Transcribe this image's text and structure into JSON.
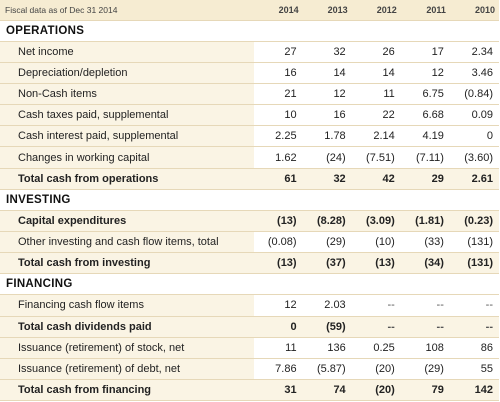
{
  "header": {
    "label": "Fiscal data as of Dec 31 2014",
    "years": [
      "2014",
      "2013",
      "2012",
      "2011",
      "2010"
    ]
  },
  "sections": [
    {
      "title": "OPERATIONS",
      "rows": [
        {
          "label": "Net income",
          "values": [
            "27",
            "32",
            "26",
            "17",
            "2.34"
          ],
          "total": false
        },
        {
          "label": "Depreciation/depletion",
          "values": [
            "16",
            "14",
            "14",
            "12",
            "3.46"
          ],
          "total": false
        },
        {
          "label": "Non-Cash items",
          "values": [
            "21",
            "12",
            "11",
            "6.75",
            "(0.84)"
          ],
          "total": false
        },
        {
          "label": "Cash taxes paid, supplemental",
          "values": [
            "10",
            "16",
            "22",
            "6.68",
            "0.09"
          ],
          "total": false
        },
        {
          "label": "Cash interest paid, supplemental",
          "values": [
            "2.25",
            "1.78",
            "2.14",
            "4.19",
            "0"
          ],
          "total": false
        },
        {
          "label": "Changes in working capital",
          "values": [
            "1.62",
            "(24)",
            "(7.51)",
            "(7.11)",
            "(3.60)"
          ],
          "total": false
        },
        {
          "label": "Total cash from operations",
          "values": [
            "61",
            "32",
            "42",
            "29",
            "2.61"
          ],
          "total": true
        }
      ]
    },
    {
      "title": "INVESTING",
      "rows": [
        {
          "label": "Capital expenditures",
          "values": [
            "(13)",
            "(8.28)",
            "(3.09)",
            "(1.81)",
            "(0.23)"
          ],
          "total": true
        },
        {
          "label": "Other investing and cash flow items, total",
          "values": [
            "(0.08)",
            "(29)",
            "(10)",
            "(33)",
            "(131)"
          ],
          "total": false
        },
        {
          "label": "Total cash from investing",
          "values": [
            "(13)",
            "(37)",
            "(13)",
            "(34)",
            "(131)"
          ],
          "total": true
        }
      ]
    },
    {
      "title": "FINANCING",
      "rows": [
        {
          "label": "Financing cash flow items",
          "values": [
            "12",
            "2.03",
            "--",
            "--",
            "--"
          ],
          "total": false
        },
        {
          "label": "Total cash dividends paid",
          "values": [
            "0",
            "(59)",
            "--",
            "--",
            "--"
          ],
          "total": true
        },
        {
          "label": "Issuance (retirement) of stock, net",
          "values": [
            "11",
            "136",
            "0.25",
            "108",
            "86"
          ],
          "total": false
        },
        {
          "label": "Issuance (retirement) of debt, net",
          "values": [
            "7.86",
            "(5.87)",
            "(20)",
            "(29)",
            "55"
          ],
          "total": false
        },
        {
          "label": "Total cash from financing",
          "values": [
            "31",
            "74",
            "(20)",
            "79",
            "142"
          ],
          "total": true
        }
      ]
    }
  ]
}
